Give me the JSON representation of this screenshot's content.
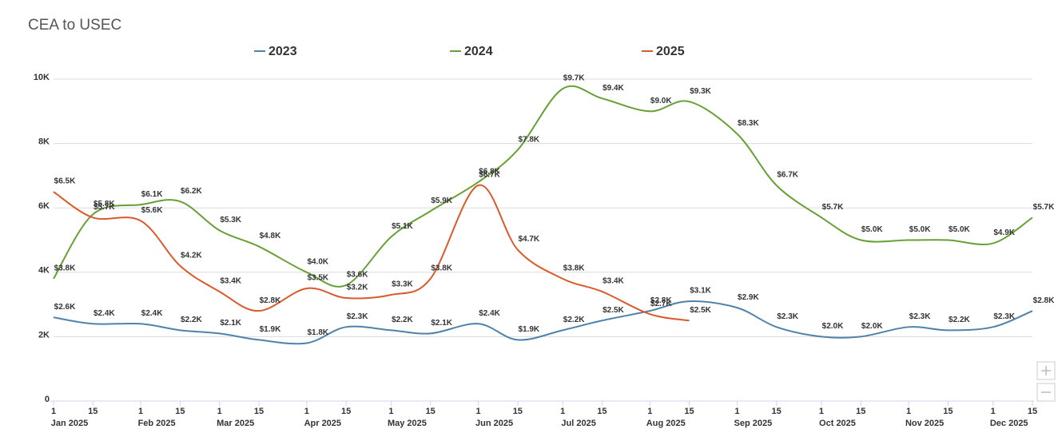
{
  "chart_data": {
    "type": "line",
    "title": "CEA to USEC",
    "x": [
      "2025-01-01",
      "2025-01-15",
      "2025-02-01",
      "2025-02-15",
      "2025-03-01",
      "2025-03-15",
      "2025-04-01",
      "2025-04-15",
      "2025-05-01",
      "2025-05-15",
      "2025-06-01",
      "2025-06-15",
      "2025-07-01",
      "2025-07-15",
      "2025-08-01",
      "2025-08-15",
      "2025-09-01",
      "2025-09-15",
      "2025-10-01",
      "2025-10-15",
      "2025-11-01",
      "2025-11-15",
      "2025-12-01",
      "2025-12-15"
    ],
    "xlim": [
      "2025-01-01",
      "2025-12-15"
    ],
    "xticks": [
      {
        "value": "2025-01-01",
        "label": "1"
      },
      {
        "value": "2025-01-15",
        "label": "15"
      },
      {
        "value": "2025-02-01",
        "label": "1"
      },
      {
        "value": "2025-02-15",
        "label": "15"
      },
      {
        "value": "2025-03-01",
        "label": "1"
      },
      {
        "value": "2025-03-15",
        "label": "15"
      },
      {
        "value": "2025-04-01",
        "label": "1"
      },
      {
        "value": "2025-04-15",
        "label": "15"
      },
      {
        "value": "2025-05-01",
        "label": "1"
      },
      {
        "value": "2025-05-15",
        "label": "15"
      },
      {
        "value": "2025-06-01",
        "label": "1"
      },
      {
        "value": "2025-06-15",
        "label": "15"
      },
      {
        "value": "2025-07-01",
        "label": "1"
      },
      {
        "value": "2025-07-15",
        "label": "15"
      },
      {
        "value": "2025-08-01",
        "label": "1"
      },
      {
        "value": "2025-08-15",
        "label": "15"
      },
      {
        "value": "2025-09-01",
        "label": "1"
      },
      {
        "value": "2025-09-15",
        "label": "15"
      },
      {
        "value": "2025-10-01",
        "label": "1"
      },
      {
        "value": "2025-10-15",
        "label": "15"
      },
      {
        "value": "2025-11-01",
        "label": "1"
      },
      {
        "value": "2025-11-15",
        "label": "15"
      },
      {
        "value": "2025-12-01",
        "label": "1"
      },
      {
        "value": "2025-12-15",
        "label": "15"
      }
    ],
    "month_labels": [
      {
        "value": "2025-01-01",
        "label": "Jan 2025"
      },
      {
        "value": "2025-02-01",
        "label": "Feb 2025"
      },
      {
        "value": "2025-03-01",
        "label": "Mar 2025"
      },
      {
        "value": "2025-04-01",
        "label": "Apr 2025"
      },
      {
        "value": "2025-05-01",
        "label": "May 2025"
      },
      {
        "value": "2025-06-01",
        "label": "Jun 2025"
      },
      {
        "value": "2025-07-01",
        "label": "Jul 2025"
      },
      {
        "value": "2025-08-01",
        "label": "Aug 2025"
      },
      {
        "value": "2025-09-01",
        "label": "Sep 2025"
      },
      {
        "value": "2025-10-01",
        "label": "Oct 2025"
      },
      {
        "value": "2025-11-01",
        "label": "Nov 2025"
      },
      {
        "value": "2025-12-01",
        "label": "Dec 2025"
      }
    ],
    "ylim": [
      0,
      10000
    ],
    "yticks": [
      0,
      {
        "value": 2000,
        "label": "2K"
      },
      {
        "value": 4000,
        "label": "4K"
      },
      {
        "value": 6000,
        "label": "6K"
      },
      {
        "value": 8000,
        "label": "8K"
      },
      {
        "value": 10000,
        "label": "10K"
      }
    ],
    "grid": true,
    "legend": "top",
    "series": [
      {
        "name": "2023",
        "color": "#4f82aa",
        "values": [
          2600,
          2400,
          2400,
          2200,
          2100,
          1900,
          1800,
          2300,
          2200,
          2100,
          2400,
          1900,
          2200,
          2500,
          2800,
          3100,
          2900,
          2300,
          2000,
          2000,
          2300,
          2200,
          2300,
          2800
        ],
        "value_labels": [
          "$2.6K",
          "$2.4K",
          "$2.4K",
          "$2.2K",
          "$2.1K",
          "$1.9K",
          "$1.8K",
          "$2.3K",
          "$2.2K",
          "$2.1K",
          "$2.4K",
          "$1.9K",
          "$2.2K",
          "$2.5K",
          "$2.8K",
          "$3.1K",
          "$2.9K",
          "$2.3K",
          "$2.0K",
          "$2.0K",
          "$2.3K",
          "$2.2K",
          "$2.3K",
          "$2.8K"
        ]
      },
      {
        "name": "2024",
        "color": "#68a035",
        "values": [
          3800,
          5800,
          6100,
          6200,
          5300,
          4800,
          4000,
          3600,
          5100,
          5900,
          6800,
          7800,
          9700,
          9400,
          9000,
          9300,
          8300,
          6700,
          5700,
          5000,
          5000,
          5000,
          4900,
          5700
        ],
        "value_labels": [
          "$3.8K",
          "$5.8K",
          "$6.1K",
          "$6.2K",
          "$5.3K",
          "$4.8K",
          "$4.0K",
          "$3.6K",
          "$5.1K",
          "$5.9K",
          "$6.8K",
          "$7.8K",
          "$9.7K",
          "$9.4K",
          "$9.0K",
          "$9.3K",
          "$8.3K",
          "$6.7K",
          "$5.7K",
          "$5.0K",
          "$5.0K",
          "$5.0K",
          "$4.9K",
          "$5.7K"
        ]
      },
      {
        "name": "2025",
        "color": "#da5a2c",
        "values": [
          6500,
          5700,
          5600,
          4200,
          3400,
          2800,
          3500,
          3200,
          3300,
          3800,
          6700,
          4700,
          3800,
          3400,
          2700,
          2500,
          null,
          null,
          null,
          null,
          null,
          null,
          null,
          null
        ],
        "value_labels": [
          "$6.5K",
          "$5.7K",
          "$5.6K",
          "$4.2K",
          "$3.4K",
          "$2.8K",
          "$3.5K",
          "$3.2K",
          "$3.3K",
          "$3.8K",
          "$6.7K",
          "$4.7K",
          "$3.8K",
          "$3.4K",
          "$2.7K",
          "$2.5K",
          null,
          null,
          null,
          null,
          null,
          null,
          null,
          null
        ]
      }
    ]
  }
}
